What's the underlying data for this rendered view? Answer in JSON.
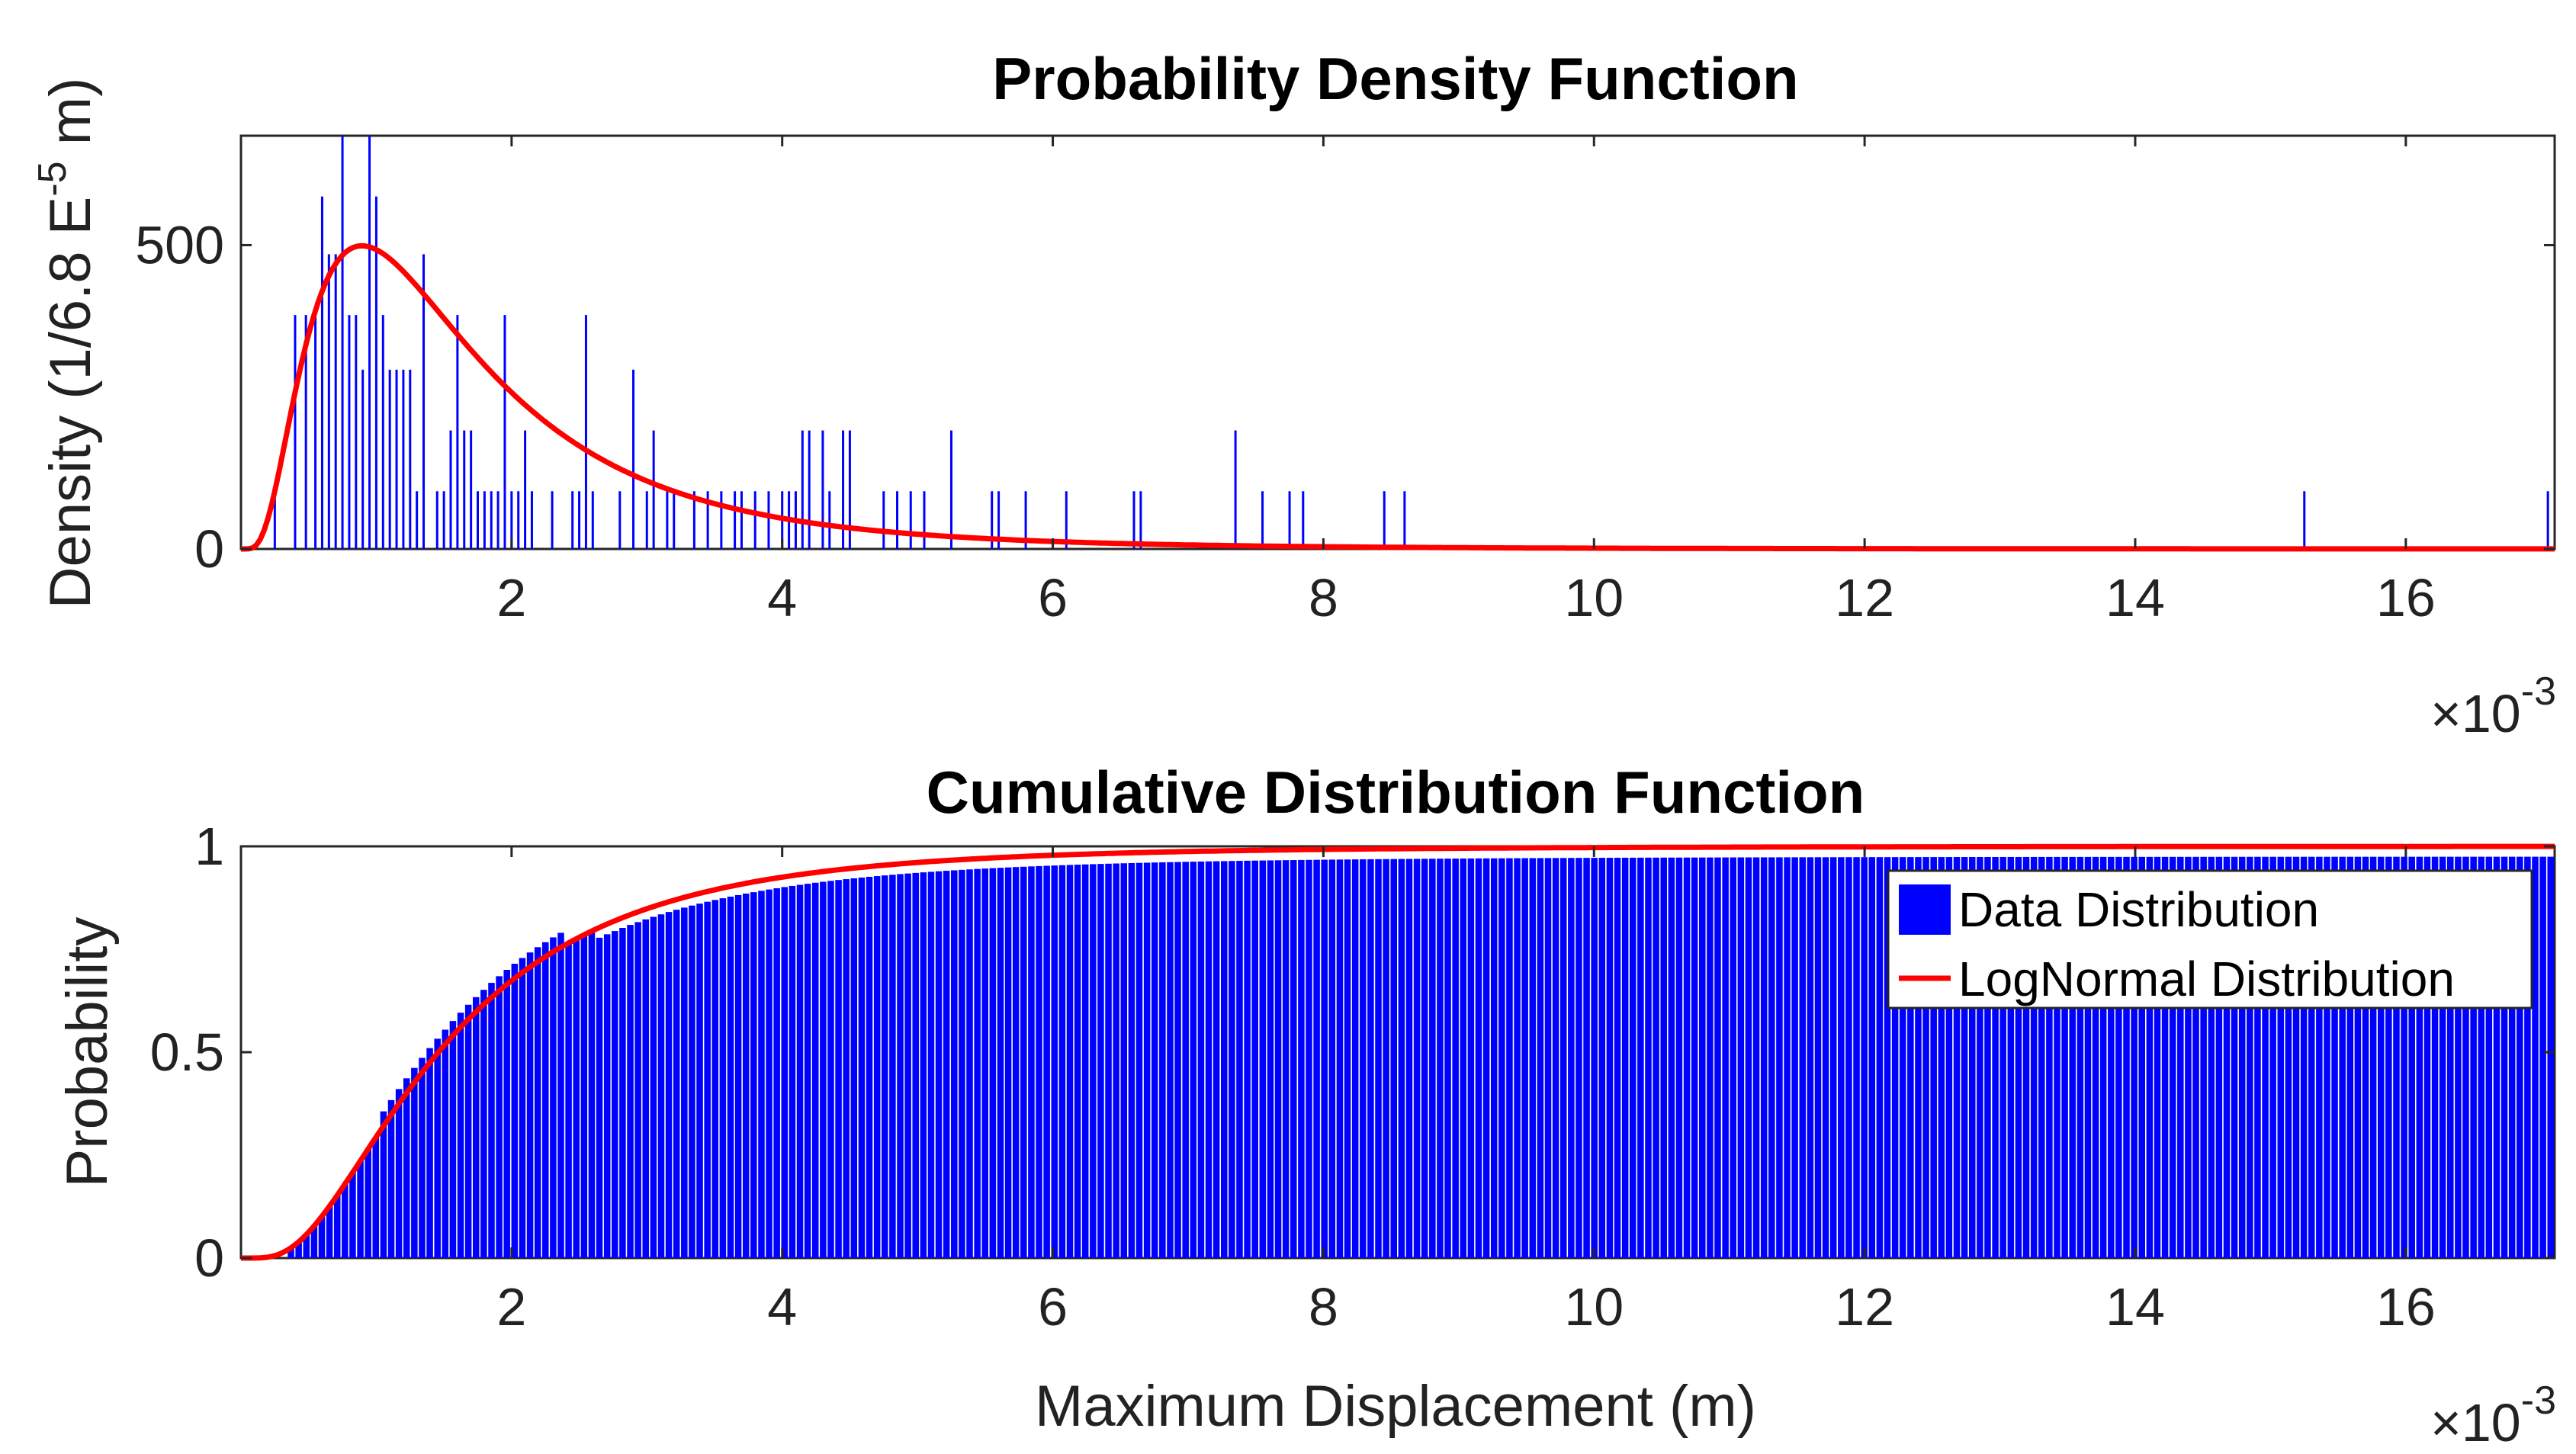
{
  "chart_data": [
    {
      "type": "bar",
      "title": "Probability Density Function",
      "ylabel_main": "Density (1/6.8 E",
      "ylabel_sup": "-5",
      "ylabel_tail": " m)",
      "x_multiplier": "×10",
      "x_multiplier_exp": "-3",
      "xlim": [
        0.0,
        17.1
      ],
      "ylim": [
        0,
        680
      ],
      "x_units": "1e-3 m",
      "xticks": [
        2,
        4,
        6,
        8,
        10,
        12,
        14,
        16
      ],
      "xtick_labels": [
        "2",
        "4",
        "6",
        "8",
        "10",
        "12",
        "14",
        "16"
      ],
      "yticks": [
        0,
        500
      ],
      "ytick_labels": [
        "0",
        "500"
      ],
      "bar_color": "#0000ff",
      "curve_color": "#ff0000",
      "data_x": [
        0.25,
        0.4,
        0.48,
        0.55,
        0.6,
        0.65,
        0.7,
        0.75,
        0.8,
        0.85,
        0.9,
        0.95,
        1.0,
        1.05,
        1.1,
        1.15,
        1.2,
        1.25,
        1.3,
        1.35,
        1.45,
        1.5,
        1.55,
        1.6,
        1.65,
        1.7,
        1.75,
        1.8,
        1.85,
        1.9,
        1.95,
        2.0,
        2.05,
        2.1,
        2.15,
        2.3,
        2.45,
        2.5,
        2.55,
        2.6,
        2.8,
        2.9,
        3.0,
        3.05,
        3.15,
        3.2,
        3.35,
        3.45,
        3.55,
        3.65,
        3.7,
        3.8,
        3.9,
        4.0,
        4.05,
        4.1,
        4.15,
        4.2,
        4.3,
        4.35,
        4.45,
        4.5,
        4.75,
        4.85,
        4.95,
        5.05,
        5.25,
        5.55,
        5.6,
        5.8,
        6.1,
        6.6,
        6.65,
        7.35,
        7.55,
        7.75,
        7.85,
        8.45,
        8.6,
        15.25,
        17.05
      ],
      "data_density": [
        95,
        385,
        385,
        385,
        580,
        485,
        485,
        680,
        385,
        385,
        295,
        680,
        580,
        385,
        295,
        295,
        295,
        295,
        95,
        485,
        95,
        95,
        195,
        385,
        195,
        195,
        95,
        95,
        95,
        95,
        385,
        95,
        95,
        195,
        95,
        95,
        95,
        95,
        385,
        95,
        95,
        295,
        95,
        195,
        95,
        95,
        95,
        95,
        95,
        95,
        95,
        95,
        95,
        95,
        95,
        95,
        195,
        195,
        195,
        95,
        195,
        195,
        95,
        95,
        95,
        95,
        195,
        95,
        95,
        95,
        95,
        95,
        95,
        195,
        95,
        95,
        95,
        95,
        95,
        95,
        95
      ],
      "fit_name": "LogNormal",
      "fit_mu": 0.378,
      "fit_sigma": 0.7
    },
    {
      "type": "bar",
      "title": "Cumulative Distribution Function",
      "xlabel": "Maximum Displacement (m)",
      "ylabel": "Probability",
      "x_multiplier": "×10",
      "x_multiplier_exp": "-3",
      "xlim": [
        0.0,
        17.1
      ],
      "ylim": [
        0,
        1
      ],
      "xticks": [
        2,
        4,
        6,
        8,
        10,
        12,
        14,
        16
      ],
      "xtick_labels": [
        "2",
        "4",
        "6",
        "8",
        "10",
        "12",
        "14",
        "16"
      ],
      "yticks": [
        0,
        0.5,
        1
      ],
      "ytick_labels": [
        "0",
        "0.5",
        "1"
      ],
      "bar_color": "#0000ff",
      "curve_color": "#ff0000",
      "legend": [
        "Data Distribution",
        "LogNormal Distribution"
      ],
      "legend_position": "right",
      "fit_name": "LogNormal",
      "fit_mu": 0.378,
      "fit_sigma": 0.7
    }
  ]
}
